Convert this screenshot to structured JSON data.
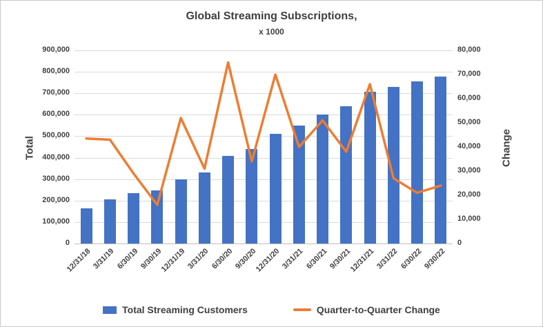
{
  "chart": {
    "title": "Global Streaming Subscriptions,",
    "subtitle": "x 1000",
    "left_axis_title": "Total",
    "right_axis_title": "Change",
    "legend": {
      "bar_label": "Total Streaming Customers",
      "line_label": "Quarter-to-Quarter Change"
    }
  },
  "chart_data": {
    "type": "bar",
    "subtype": "combo bar+line, dual axis",
    "title": "Global Streaming Subscriptions,",
    "subtitle": "x 1000",
    "categories": [
      "12/31/18",
      "3/31/19",
      "6/30/19",
      "9/30/19",
      "12/31/19",
      "3/31/20",
      "6/30/20",
      "9/30/20",
      "12/31/20",
      "3/31/21",
      "6/30/21",
      "9/30/21",
      "12/31/21",
      "3/31/22",
      "6/30/22",
      "9/30/22"
    ],
    "series": [
      {
        "name": "Total Streaming Customers",
        "type": "bar",
        "axis": "left",
        "color": "#4472C4",
        "values": [
          164000,
          205000,
          234000,
          249000,
          300000,
          331000,
          407000,
          440000,
          510000,
          549000,
          600000,
          639000,
          708000,
          731000,
          754000,
          778000
        ]
      },
      {
        "name": "Quarter-to-Quarter Change",
        "type": "line",
        "axis": "right",
        "color": "#ED7D31",
        "values": [
          43500,
          43000,
          29000,
          16000,
          52000,
          31000,
          75000,
          34000,
          70000,
          40000,
          51000,
          38000,
          66000,
          27000,
          21000,
          24000
        ]
      }
    ],
    "left_axis": {
      "label": "Total",
      "min": 0,
      "max": 900000,
      "tick_interval": 100000,
      "ticks": [
        "900,000",
        "800,000",
        "700,000",
        "600,000",
        "500,000",
        "400,000",
        "300,000",
        "200,000",
        "100,000",
        "0"
      ]
    },
    "right_axis": {
      "label": "Change",
      "min": 0,
      "max": 80000,
      "tick_interval": 10000,
      "ticks": [
        "80,000",
        "70,000",
        "60,000",
        "50,000",
        "40,000",
        "30,000",
        "20,000",
        "10,000",
        "0"
      ]
    },
    "grid": true,
    "legend_position": "bottom",
    "x_labels_rotation_deg": -45
  },
  "colors": {
    "bar_fill": "#4472C4",
    "line_stroke": "#ED7D31",
    "text": "#404040",
    "gridline": "#D9D9D9",
    "axis_line": "#BFBFBF",
    "chart_border": "#C8C8C8",
    "background": "#FFFFFF"
  }
}
